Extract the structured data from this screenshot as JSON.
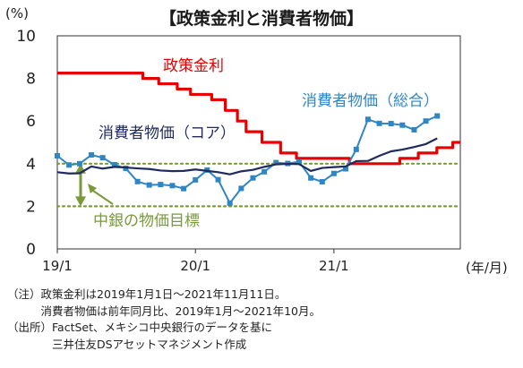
{
  "chart_data": {
    "type": "line",
    "title": "【政策金利と消費者物価】",
    "ylabel": "(%)",
    "xlabel": "(年/月)",
    "ylim": [
      0,
      10
    ],
    "yticks": [
      "0",
      "2",
      "4",
      "6",
      "8",
      "10"
    ],
    "x_range": [
      "2019-01",
      "2021-12"
    ],
    "xticks": [
      {
        "label": "19/1",
        "x": "2019-01"
      },
      {
        "label": "20/1",
        "x": "2020-01"
      },
      {
        "label": "21/1",
        "x": "2021-01"
      }
    ],
    "target_band": {
      "label": "中銀の物価目標",
      "lower": 2,
      "upper": 4,
      "color": "#7a9a3a"
    },
    "series": [
      {
        "name": "政策金利",
        "color": "#e60000",
        "step": true,
        "x": [
          "2019-01-01",
          "2019-08-15",
          "2019-09-26",
          "2019-11-14",
          "2019-12-19",
          "2020-02-13",
          "2020-03-20",
          "2020-04-21",
          "2020-05-14",
          "2020-06-25",
          "2020-08-13",
          "2020-09-24",
          "2020-11-12",
          "2020-12-17",
          "2021-02-11",
          "2021-03-25",
          "2021-06-24",
          "2021-08-12",
          "2021-09-30",
          "2021-11-11"
        ],
        "values": [
          8.25,
          8.0,
          7.75,
          7.5,
          7.25,
          7.0,
          6.5,
          6.0,
          5.5,
          5.0,
          4.5,
          4.25,
          4.25,
          4.25,
          4.0,
          4.0,
          4.25,
          4.5,
          4.75,
          5.0
        ]
      },
      {
        "name": "消費者物価（総合）",
        "color": "#2f86c3",
        "markers": true,
        "x": [
          "2019-01",
          "2019-02",
          "2019-03",
          "2019-04",
          "2019-05",
          "2019-06",
          "2019-07",
          "2019-08",
          "2019-09",
          "2019-10",
          "2019-11",
          "2019-12",
          "2020-01",
          "2020-02",
          "2020-03",
          "2020-04",
          "2020-05",
          "2020-06",
          "2020-07",
          "2020-08",
          "2020-09",
          "2020-10",
          "2020-11",
          "2020-12",
          "2021-01",
          "2021-02",
          "2021-03",
          "2021-04",
          "2021-05",
          "2021-06",
          "2021-07",
          "2021-08",
          "2021-09",
          "2021-10"
        ],
        "values": [
          4.37,
          3.94,
          4.0,
          4.41,
          4.28,
          3.95,
          3.78,
          3.16,
          3.0,
          3.02,
          2.97,
          2.83,
          3.24,
          3.7,
          3.25,
          2.15,
          2.84,
          3.33,
          3.62,
          4.05,
          4.01,
          4.09,
          3.33,
          3.15,
          3.54,
          3.76,
          4.67,
          6.08,
          5.89,
          5.88,
          5.81,
          5.59,
          6.0,
          6.24
        ]
      },
      {
        "name": "消費者物価（コア）",
        "color": "#1f2a5e",
        "x": [
          "2019-01",
          "2019-02",
          "2019-03",
          "2019-04",
          "2019-05",
          "2019-06",
          "2019-07",
          "2019-08",
          "2019-09",
          "2019-10",
          "2019-11",
          "2019-12",
          "2020-01",
          "2020-02",
          "2020-03",
          "2020-04",
          "2020-05",
          "2020-06",
          "2020-07",
          "2020-08",
          "2020-09",
          "2020-10",
          "2020-11",
          "2020-12",
          "2021-01",
          "2021-02",
          "2021-03",
          "2021-04",
          "2021-05",
          "2021-06",
          "2021-07",
          "2021-08",
          "2021-09",
          "2021-10"
        ],
        "values": [
          3.6,
          3.54,
          3.55,
          3.87,
          3.77,
          3.85,
          3.82,
          3.78,
          3.75,
          3.68,
          3.65,
          3.66,
          3.73,
          3.66,
          3.6,
          3.5,
          3.64,
          3.71,
          3.85,
          3.97,
          3.99,
          3.98,
          3.66,
          3.8,
          3.84,
          3.87,
          4.12,
          4.13,
          4.37,
          4.58,
          4.66,
          4.78,
          4.92,
          5.19
        ]
      }
    ]
  },
  "notes": [
    "（注）政策金利は2019年1月1日～2021年11月11日。",
    "　　　消費者物価は前年同月比、2019年1月～2021年10月。",
    "（出所）FactSet、メキシコ中央銀行のデータを基に",
    "　　　　三井住友DSアセットマネジメント作成"
  ]
}
